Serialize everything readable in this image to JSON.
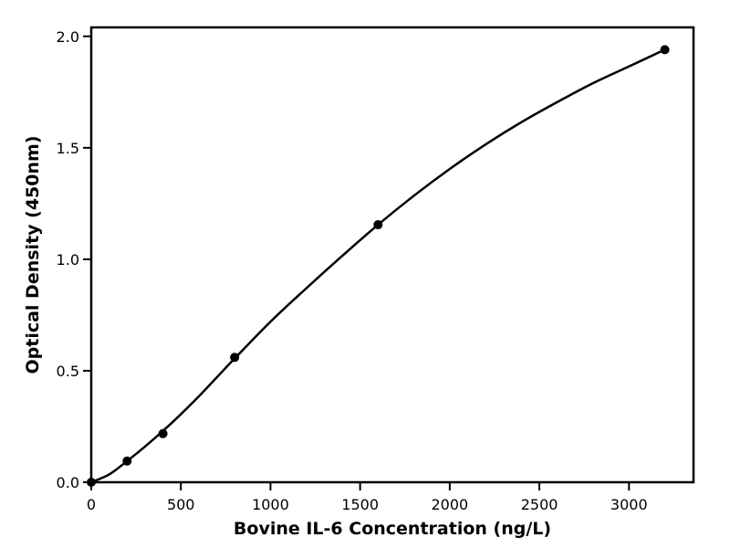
{
  "chart_data": {
    "type": "line",
    "title": "",
    "xlabel": "Bovine IL-6 Concentration (ng/L)",
    "ylabel": "Optical Density (450nm)",
    "xlim": [
      0,
      3360
    ],
    "ylim": [
      0,
      2.04
    ],
    "x_ticks": [
      0,
      500,
      1000,
      1500,
      2000,
      2500,
      3000
    ],
    "x_tick_labels": [
      "0",
      "500",
      "1000",
      "1500",
      "2000",
      "2500",
      "3000"
    ],
    "y_ticks": [
      0.0,
      0.5,
      1.0,
      1.5,
      2.0
    ],
    "y_tick_labels": [
      "0.0",
      "0.5",
      "1.0",
      "1.5",
      "2.0"
    ],
    "grid": false,
    "legend": "none",
    "series": [
      {
        "kind": "scatter",
        "x": [
          0,
          200,
          400,
          800,
          1600,
          3200
        ],
        "y": [
          0.0,
          0.095,
          0.218,
          0.56,
          1.155,
          1.94
        ]
      },
      {
        "kind": "fitted-curve",
        "x": [
          0,
          100,
          200,
          300,
          400,
          500,
          600,
          700,
          800,
          1000,
          1200,
          1400,
          1600,
          1800,
          2000,
          2200,
          2400,
          2600,
          2800,
          3000,
          3200
        ],
        "y": [
          0.0,
          0.035,
          0.095,
          0.16,
          0.23,
          0.305,
          0.385,
          0.47,
          0.555,
          0.72,
          0.87,
          1.015,
          1.155,
          1.285,
          1.405,
          1.515,
          1.615,
          1.705,
          1.79,
          1.865,
          1.94
        ]
      }
    ],
    "colors": {
      "line": "#000000",
      "marker": "#000000",
      "axes": "#000000"
    }
  }
}
